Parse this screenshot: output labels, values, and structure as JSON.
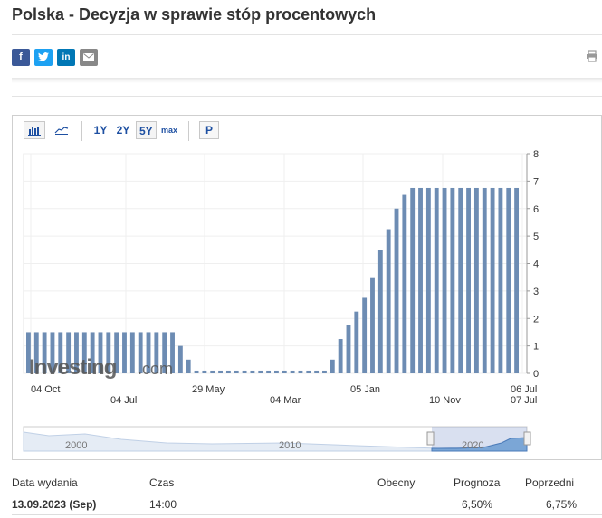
{
  "page": {
    "title": "Polska - Decyzja w sprawie stóp procentowych"
  },
  "share": {
    "facebook_icon": "f",
    "twitter_icon": "twitter-icon",
    "linkedin_icon": "in",
    "email_icon": "email-icon",
    "print_icon": "printer-icon"
  },
  "toolbar": {
    "range_1y": "1Y",
    "range_2y": "2Y",
    "range_5y": "5Y",
    "range_max": "max",
    "pan_label": "P"
  },
  "chart_data": {
    "type": "bar",
    "watermark": "Investing.com",
    "ylim": [
      0,
      8
    ],
    "y_ticks": [
      "8",
      "7",
      "6",
      "5",
      "4",
      "3",
      "2",
      "1",
      "0"
    ],
    "x_labels_row1": [
      "04 Oct",
      "29 May",
      "05 Jan",
      "06 Jul"
    ],
    "x_labels_row2": [
      "04 Jul",
      "04 Mar",
      "10 Nov",
      "07 Jul"
    ],
    "values": [
      1.5,
      1.5,
      1.5,
      1.5,
      1.5,
      1.5,
      1.5,
      1.5,
      1.5,
      1.5,
      1.5,
      1.5,
      1.5,
      1.5,
      1.5,
      1.5,
      1.5,
      1.5,
      1.5,
      1.0,
      0.5,
      0.1,
      0.1,
      0.1,
      0.1,
      0.1,
      0.1,
      0.1,
      0.1,
      0.1,
      0.1,
      0.1,
      0.1,
      0.1,
      0.1,
      0.1,
      0.1,
      0.1,
      0.5,
      1.25,
      1.75,
      2.25,
      2.75,
      3.5,
      4.5,
      5.25,
      6.0,
      6.5,
      6.75,
      6.75,
      6.75,
      6.75,
      6.75,
      6.75,
      6.75,
      6.75,
      6.75,
      6.75,
      6.75,
      6.75,
      6.75,
      6.75
    ],
    "bar_color": "#6d8cb3",
    "navigator_labels": [
      "2000",
      "2010",
      "2020"
    ]
  },
  "table": {
    "headers": {
      "release_date": "Data wydania",
      "time": "Czas",
      "actual": "Obecny",
      "forecast": "Prognoza",
      "previous": "Poprzedni"
    },
    "row": {
      "release_date": "13.09.2023 (Sep)",
      "time": "14:00",
      "actual": "",
      "forecast": "6,50%",
      "previous": "6,75%"
    }
  }
}
